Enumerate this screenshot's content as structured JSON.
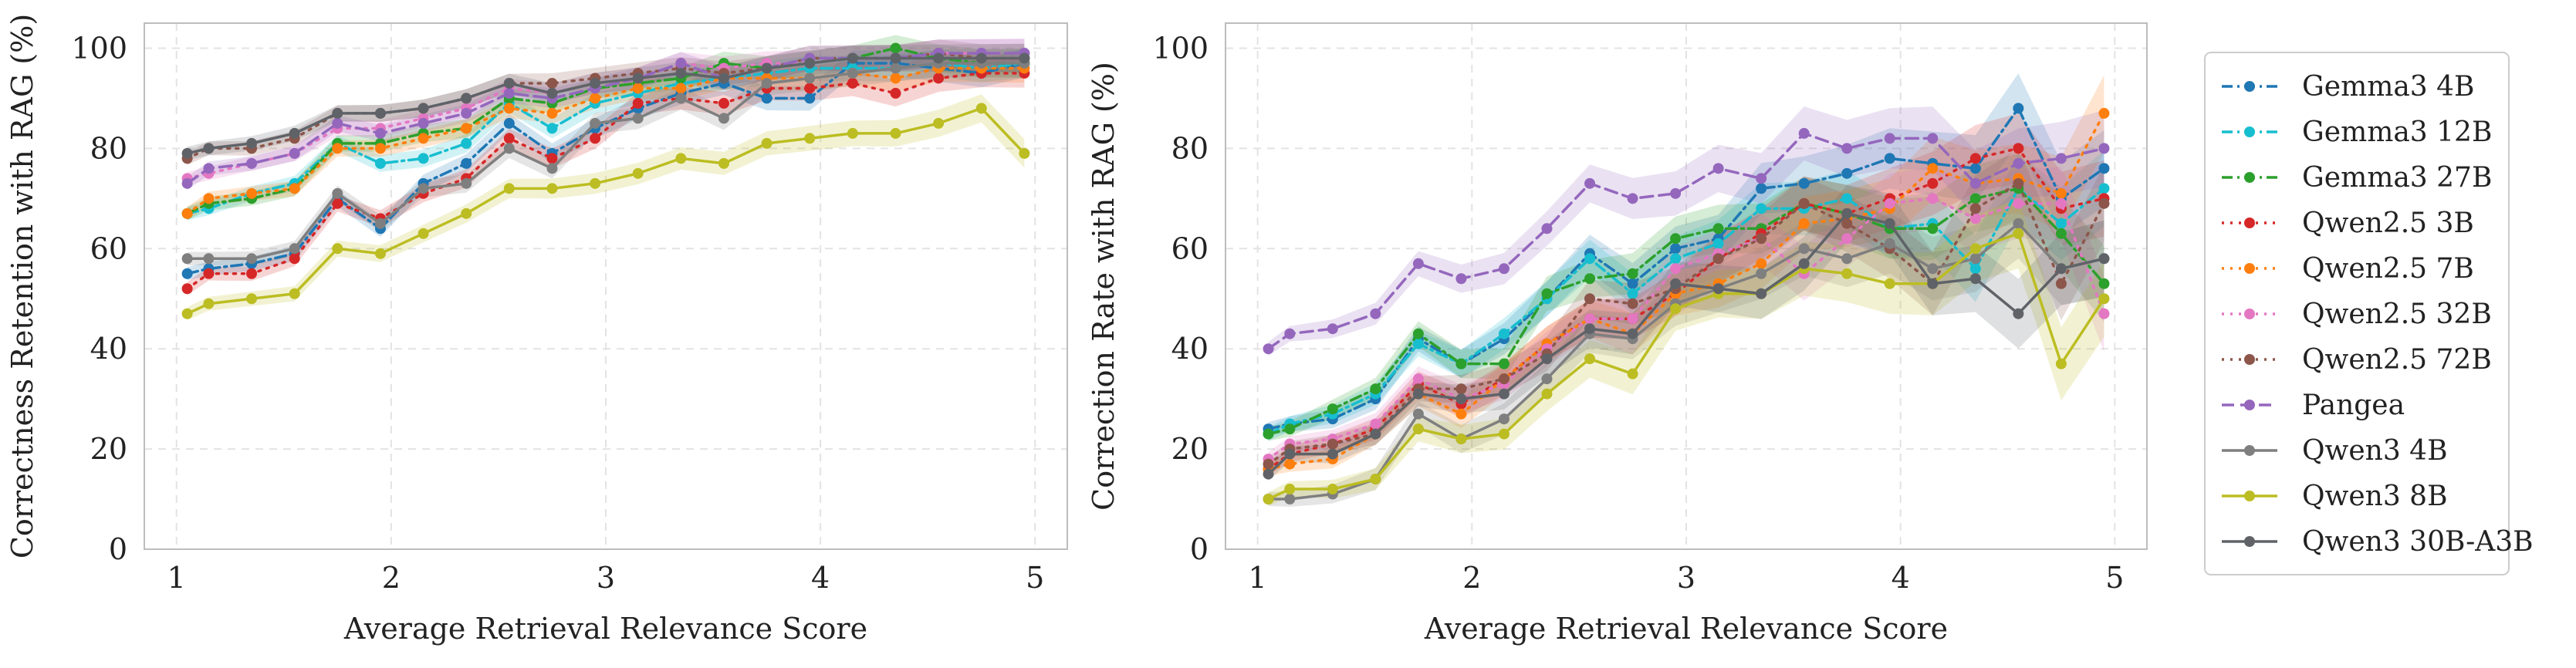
{
  "figure": {
    "legend": {
      "placement": "right, outside"
    }
  },
  "series_styles": [
    {
      "name": "Gemma3 4B",
      "color": "#1f77b4",
      "dash": "dashdot"
    },
    {
      "name": "Gemma3 12B",
      "color": "#17becf",
      "dash": "dashdot"
    },
    {
      "name": "Gemma3 27B",
      "color": "#2ca02c",
      "dash": "dashdot"
    },
    {
      "name": "Qwen2.5 3B",
      "color": "#d62728",
      "dash": "dotted"
    },
    {
      "name": "Qwen2.5 7B",
      "color": "#ff7f0e",
      "dash": "dotted"
    },
    {
      "name": "Qwen2.5 32B",
      "color": "#e377c2",
      "dash": "dotted"
    },
    {
      "name": "Qwen2.5 72B",
      "color": "#8c564b",
      "dash": "dotted"
    },
    {
      "name": "Pangea",
      "color": "#9467bd",
      "dash": "dashed"
    },
    {
      "name": "Qwen3 4B",
      "color": "#7f7f7f",
      "dash": "solid"
    },
    {
      "name": "Qwen3 8B",
      "color": "#bcbd22",
      "dash": "solid"
    },
    {
      "name": "Qwen3 30B-A3B",
      "color": "#5f6368",
      "dash": "solid"
    }
  ],
  "chart_data": [
    {
      "type": "line",
      "title": "",
      "xlabel": "Average Retrieval Relevance Score",
      "ylabel": "Correctness Retention with RAG (%)",
      "xlim": [
        0.85,
        5.15
      ],
      "ylim": [
        0,
        105
      ],
      "xticks": [
        1,
        2,
        3,
        4,
        5
      ],
      "yticks": [
        0,
        20,
        40,
        60,
        80,
        100
      ],
      "grid": true,
      "x": [
        1.05,
        1.15,
        1.35,
        1.55,
        1.75,
        1.95,
        2.15,
        2.35,
        2.55,
        2.75,
        2.95,
        3.15,
        3.35,
        3.55,
        3.75,
        3.95,
        4.15,
        4.35,
        4.55,
        4.75,
        4.95
      ],
      "series": [
        {
          "name": "Gemma3 4B",
          "values": [
            55,
            56,
            57,
            59,
            70,
            64,
            73,
            77,
            85,
            79,
            84,
            88,
            91,
            93,
            90,
            90,
            97,
            97,
            96,
            95,
            97
          ]
        },
        {
          "name": "Gemma3 12B",
          "values": [
            67,
            68,
            71,
            73,
            81,
            77,
            78,
            81,
            89,
            84,
            89,
            91,
            93,
            94,
            95,
            96,
            96,
            96,
            97,
            96,
            97
          ]
        },
        {
          "name": "Gemma3 27B",
          "values": [
            67,
            69,
            70,
            72,
            81,
            81,
            83,
            84,
            90,
            89,
            92,
            93,
            94,
            97,
            96,
            97,
            98,
            100,
            98,
            97,
            97
          ]
        },
        {
          "name": "Qwen2.5 3B",
          "values": [
            52,
            55,
            55,
            58,
            69,
            66,
            71,
            74,
            82,
            78,
            82,
            89,
            90,
            89,
            92,
            92,
            93,
            91,
            94,
            95,
            95
          ]
        },
        {
          "name": "Qwen2.5 7B",
          "values": [
            67,
            70,
            71,
            72,
            80,
            80,
            82,
            84,
            88,
            87,
            90,
            92,
            92,
            94,
            94,
            94,
            95,
            94,
            96,
            96,
            96
          ]
        },
        {
          "name": "Qwen2.5 32B",
          "values": [
            74,
            75,
            77,
            79,
            84,
            84,
            86,
            88,
            92,
            91,
            93,
            94,
            97,
            96,
            97,
            97,
            98,
            98,
            99,
            99,
            99
          ]
        },
        {
          "name": "Qwen2.5 72B",
          "values": [
            78,
            80,
            80,
            82,
            87,
            87,
            88,
            90,
            93,
            93,
            94,
            95,
            96,
            95,
            96,
            98,
            98,
            98,
            99,
            98,
            98
          ]
        },
        {
          "name": "Pangea",
          "values": [
            73,
            76,
            77,
            79,
            85,
            83,
            85,
            87,
            91,
            90,
            92,
            94,
            97,
            94,
            96,
            98,
            98,
            98,
            99,
            99,
            99
          ]
        },
        {
          "name": "Qwen3 4B",
          "values": [
            58,
            58,
            58,
            60,
            71,
            65,
            72,
            73,
            80,
            76,
            85,
            86,
            90,
            86,
            93,
            94,
            95,
            96,
            97,
            97,
            97
          ]
        },
        {
          "name": "Qwen3 8B",
          "values": [
            47,
            49,
            50,
            51,
            60,
            59,
            63,
            67,
            72,
            72,
            73,
            75,
            78,
            77,
            81,
            82,
            83,
            83,
            85,
            88,
            79
          ]
        },
        {
          "name": "Qwen3 30B-A3B",
          "values": [
            79,
            80,
            81,
            83,
            87,
            87,
            88,
            90,
            93,
            91,
            93,
            94,
            95,
            94,
            96,
            97,
            98,
            98,
            98,
            98,
            98
          ]
        }
      ]
    },
    {
      "type": "line",
      "title": "",
      "xlabel": "Average Retrieval Relevance Score",
      "ylabel": "Correction Rate with RAG (%)",
      "xlim": [
        0.85,
        5.15
      ],
      "ylim": [
        0,
        105
      ],
      "xticks": [
        1,
        2,
        3,
        4,
        5
      ],
      "yticks": [
        0,
        20,
        40,
        60,
        80,
        100
      ],
      "grid": true,
      "x": [
        1.05,
        1.15,
        1.35,
        1.55,
        1.75,
        1.95,
        2.15,
        2.35,
        2.55,
        2.75,
        2.95,
        3.15,
        3.35,
        3.55,
        3.75,
        3.95,
        4.15,
        4.35,
        4.55,
        4.75,
        4.95
      ],
      "series": [
        {
          "name": "Gemma3 4B",
          "values": [
            24,
            25,
            26,
            30,
            42,
            37,
            42,
            50,
            59,
            53,
            60,
            62,
            72,
            73,
            75,
            78,
            77,
            76,
            88,
            70,
            76
          ]
        },
        {
          "name": "Gemma3 12B",
          "values": [
            23,
            25,
            27,
            31,
            41,
            37,
            43,
            50,
            58,
            51,
            58,
            61,
            68,
            68,
            70,
            64,
            65,
            56,
            72,
            65,
            72
          ]
        },
        {
          "name": "Gemma3 27B",
          "values": [
            23,
            24,
            28,
            32,
            43,
            37,
            37,
            51,
            54,
            55,
            62,
            64,
            64,
            69,
            67,
            64,
            64,
            70,
            72,
            63,
            53
          ]
        },
        {
          "name": "Qwen2.5 3B",
          "values": [
            16,
            19,
            21,
            24,
            33,
            29,
            34,
            41,
            46,
            46,
            51,
            58,
            63,
            69,
            67,
            70,
            73,
            78,
            80,
            68,
            70
          ]
        },
        {
          "name": "Qwen2.5 7B",
          "values": [
            16,
            17,
            18,
            23,
            31,
            27,
            34,
            41,
            46,
            43,
            51,
            53,
            57,
            65,
            66,
            68,
            76,
            73,
            74,
            71,
            87
          ]
        },
        {
          "name": "Qwen2.5 32B",
          "values": [
            18,
            21,
            22,
            25,
            34,
            30,
            33,
            40,
            46,
            46,
            56,
            59,
            62,
            55,
            62,
            69,
            70,
            66,
            69,
            69,
            47
          ]
        },
        {
          "name": "Qwen2.5 72B",
          "values": [
            17,
            20,
            21,
            23,
            32,
            32,
            34,
            39,
            50,
            49,
            52,
            58,
            62,
            69,
            65,
            60,
            53,
            68,
            73,
            53,
            69
          ]
        },
        {
          "name": "Pangea",
          "values": [
            40,
            43,
            44,
            47,
            57,
            54,
            56,
            64,
            73,
            70,
            71,
            76,
            74,
            83,
            80,
            82,
            82,
            73,
            77,
            78,
            80
          ]
        },
        {
          "name": "Qwen3 4B",
          "values": [
            10,
            10,
            11,
            14,
            27,
            22,
            26,
            34,
            43,
            42,
            49,
            52,
            55,
            60,
            58,
            61,
            56,
            58,
            65,
            56,
            58
          ]
        },
        {
          "name": "Qwen3 8B",
          "values": [
            10,
            12,
            12,
            14,
            24,
            22,
            23,
            31,
            38,
            35,
            48,
            51,
            51,
            56,
            55,
            53,
            53,
            60,
            63,
            37,
            50
          ]
        },
        {
          "name": "Qwen3 30B-A3B",
          "values": [
            15,
            19,
            19,
            23,
            31,
            30,
            31,
            38,
            44,
            43,
            53,
            52,
            51,
            57,
            67,
            65,
            53,
            54,
            47,
            56,
            58
          ]
        }
      ]
    }
  ]
}
